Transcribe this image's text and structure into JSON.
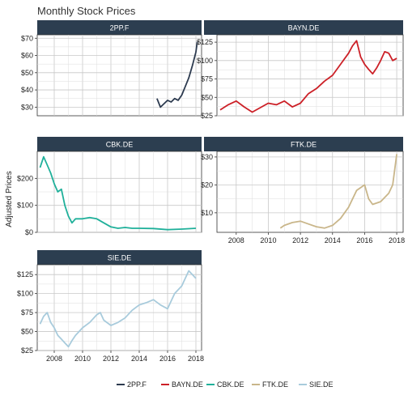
{
  "chart_data": {
    "type": "line",
    "title": "Monthly Stock Prices",
    "ylabel": "Adjusted Prices",
    "xlabel": "",
    "legend_position": "bottom",
    "grid": true,
    "x_ticks": [
      2008,
      2010,
      2012,
      2014,
      2016,
      2018
    ],
    "xlim": [
      2006.8,
      2018.4
    ],
    "panels": [
      {
        "name": "2PP.F",
        "color": "#2c3a4f",
        "ylim": [
          25,
          72
        ],
        "y_ticks": [
          30,
          40,
          50,
          60,
          70
        ],
        "y_tick_labels": [
          "$30",
          "$40",
          "$50",
          "$60",
          "$70"
        ],
        "x": [
          2015.25,
          2015.5,
          2015.75,
          2016.0,
          2016.25,
          2016.5,
          2016.75,
          2017.0,
          2017.25,
          2017.5,
          2017.75,
          2018.0,
          2018.1
        ],
        "values": [
          35,
          30,
          32,
          34,
          33,
          35,
          34,
          37,
          42,
          47,
          54,
          62,
          68
        ]
      },
      {
        "name": "BAYN.DE",
        "color": "#cc2027",
        "ylim": [
          25,
          135
        ],
        "y_ticks": [
          25,
          50,
          75,
          100,
          125
        ],
        "y_tick_labels": [
          "$25",
          "$50",
          "$75",
          "$100",
          "$125"
        ],
        "x": [
          2007.0,
          2007.5,
          2008.0,
          2008.5,
          2009.0,
          2009.5,
          2010.0,
          2010.5,
          2011.0,
          2011.5,
          2012.0,
          2012.5,
          2013.0,
          2013.5,
          2014.0,
          2014.5,
          2015.0,
          2015.25,
          2015.5,
          2015.75,
          2016.0,
          2016.25,
          2016.5,
          2016.75,
          2017.0,
          2017.25,
          2017.5,
          2017.75,
          2018.0
        ],
        "values": [
          33,
          40,
          45,
          37,
          30,
          36,
          42,
          40,
          45,
          37,
          42,
          55,
          62,
          72,
          80,
          95,
          110,
          120,
          127,
          105,
          95,
          88,
          82,
          90,
          100,
          112,
          110,
          100,
          103
        ]
      },
      {
        "name": "CBK.DE",
        "color": "#1fb09a",
        "ylim": [
          0,
          300
        ],
        "y_ticks": [
          0,
          100,
          200
        ],
        "y_tick_labels": [
          "$0",
          "$100",
          "$200"
        ],
        "x": [
          2007.0,
          2007.25,
          2007.5,
          2007.75,
          2008.0,
          2008.25,
          2008.5,
          2008.75,
          2009.0,
          2009.25,
          2009.5,
          2010.0,
          2010.5,
          2011.0,
          2011.5,
          2012.0,
          2012.5,
          2013.0,
          2013.5,
          2014.0,
          2015.0,
          2016.0,
          2017.0,
          2018.0
        ],
        "values": [
          240,
          280,
          250,
          220,
          180,
          150,
          160,
          100,
          60,
          35,
          50,
          50,
          55,
          50,
          35,
          20,
          15,
          18,
          15,
          15,
          14,
          10,
          12,
          15
        ]
      },
      {
        "name": "FTK.DE",
        "color": "#c9b68a",
        "ylim": [
          3,
          32
        ],
        "y_ticks": [
          10,
          20,
          30
        ],
        "y_tick_labels": [
          "$10",
          "$20",
          "$30"
        ],
        "x": [
          2010.75,
          2011.0,
          2011.5,
          2012.0,
          2012.5,
          2013.0,
          2013.5,
          2014.0,
          2014.5,
          2015.0,
          2015.5,
          2016.0,
          2016.25,
          2016.5,
          2017.0,
          2017.5,
          2017.75,
          2018.0
        ],
        "values": [
          4.5,
          5.5,
          6.5,
          7,
          6,
          5,
          4.5,
          5.5,
          8,
          12,
          18,
          20,
          15,
          13,
          14,
          17,
          20,
          31
        ]
      },
      {
        "name": "SIE.DE",
        "color": "#a8cbdc",
        "ylim": [
          25,
          138
        ],
        "y_ticks": [
          25,
          50,
          75,
          100,
          125
        ],
        "y_tick_labels": [
          "$25",
          "$50",
          "$75",
          "$100",
          "$125"
        ],
        "x": [
          2007.0,
          2007.25,
          2007.5,
          2007.75,
          2008.0,
          2008.25,
          2008.5,
          2008.75,
          2009.0,
          2009.25,
          2009.5,
          2010.0,
          2010.5,
          2011.0,
          2011.25,
          2011.5,
          2012.0,
          2012.5,
          2013.0,
          2013.5,
          2014.0,
          2014.5,
          2015.0,
          2015.5,
          2016.0,
          2016.5,
          2017.0,
          2017.5,
          2018.0
        ],
        "values": [
          60,
          70,
          75,
          62,
          55,
          45,
          40,
          35,
          30,
          38,
          45,
          55,
          62,
          72,
          75,
          65,
          58,
          62,
          68,
          78,
          85,
          88,
          92,
          85,
          80,
          100,
          110,
          130,
          120
        ]
      }
    ]
  }
}
